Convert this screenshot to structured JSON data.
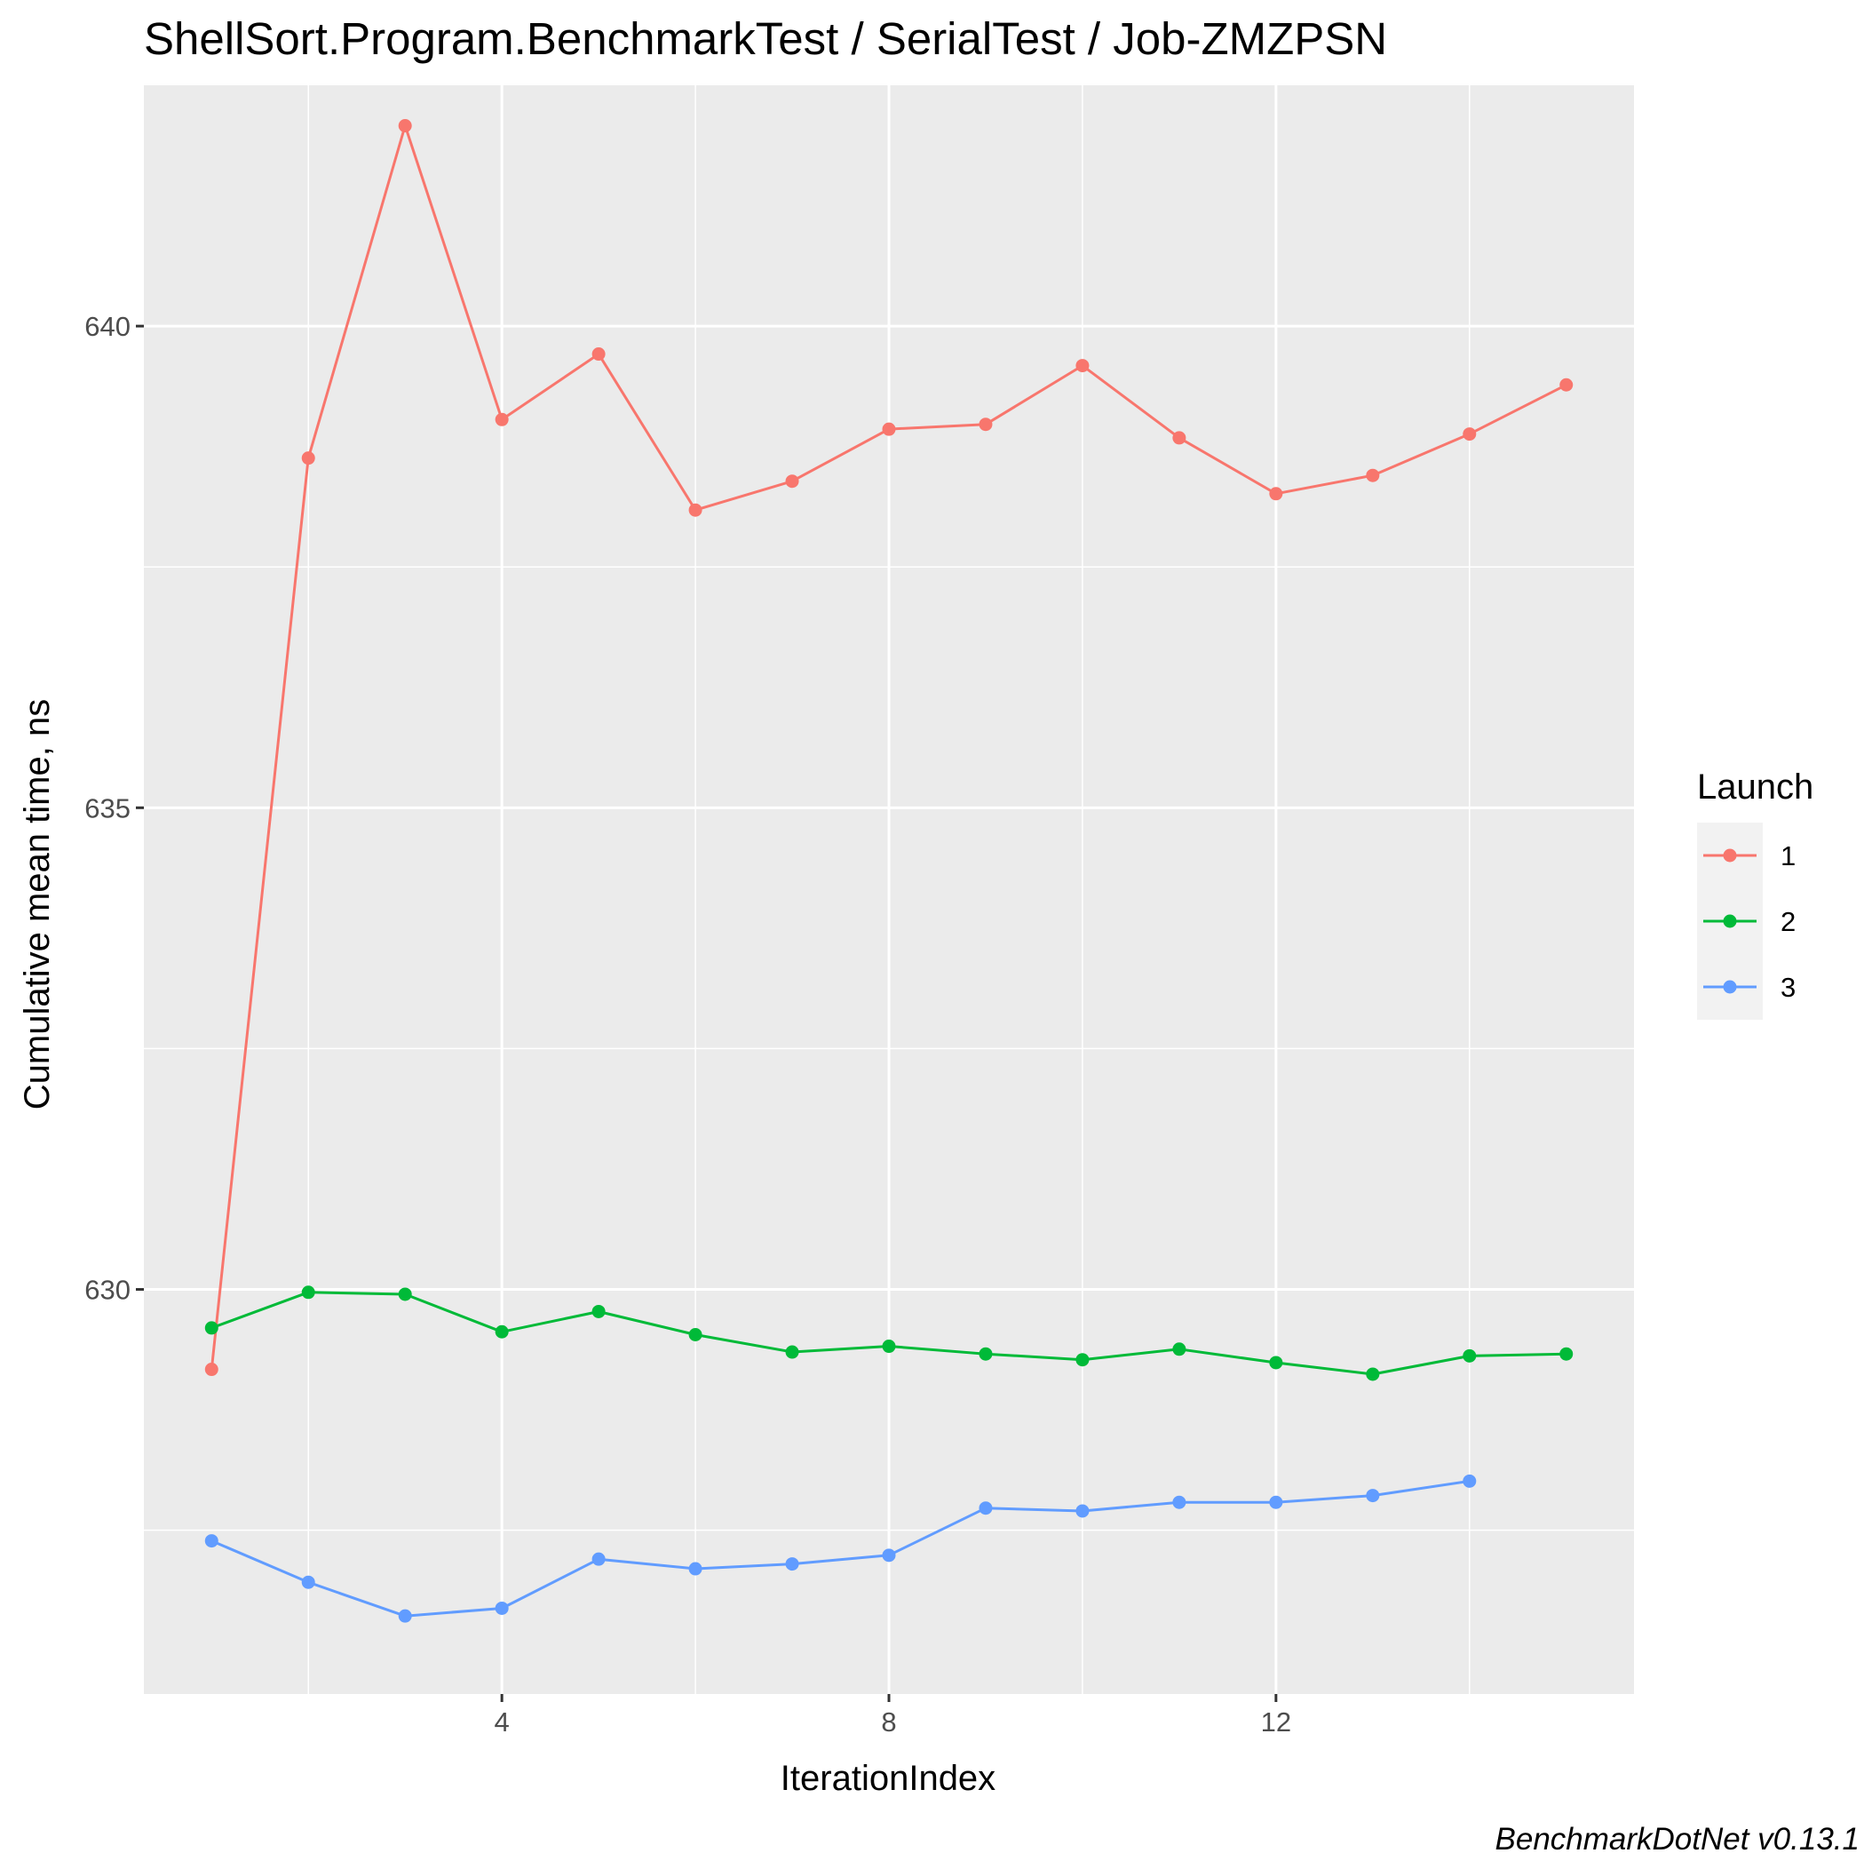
{
  "chart_data": {
    "type": "line",
    "title": "ShellSort.Program.BenchmarkTest / SerialTest / Job-ZMZPSN",
    "xlabel": "IterationIndex",
    "ylabel": "Cumulative mean time, ns",
    "xlim": [
      0.3,
      15.7
    ],
    "ylim": [
      625.8,
      642.5
    ],
    "x_ticks": [
      4,
      8,
      12
    ],
    "x_tick_labels": [
      "4",
      "8",
      "12"
    ],
    "y_ticks": [
      630,
      635,
      640
    ],
    "y_tick_labels": [
      "630",
      "635",
      "640"
    ],
    "grid": true,
    "legend": {
      "title": "Launch",
      "position": "right"
    },
    "caption": "BenchmarkDotNet v0.13.1",
    "series": [
      {
        "name": "1",
        "color": "#F8766D",
        "x": [
          1,
          2,
          3,
          4,
          5,
          6,
          7,
          8,
          9,
          10,
          11,
          12,
          13,
          14,
          15
        ],
        "y": [
          629.17,
          638.63,
          642.08,
          639.03,
          639.71,
          638.09,
          638.39,
          638.93,
          638.98,
          639.59,
          638.84,
          638.26,
          638.45,
          638.88,
          639.39
        ]
      },
      {
        "name": "2",
        "color": "#00BA38",
        "x": [
          1,
          2,
          3,
          4,
          5,
          6,
          7,
          8,
          9,
          10,
          11,
          12,
          13,
          14,
          15
        ],
        "y": [
          629.6,
          629.97,
          629.95,
          629.56,
          629.77,
          629.53,
          629.35,
          629.41,
          629.33,
          629.27,
          629.38,
          629.24,
          629.12,
          629.31,
          629.33
        ]
      },
      {
        "name": "3",
        "color": "#619CFF",
        "x": [
          1,
          2,
          3,
          4,
          5,
          6,
          7,
          8,
          9,
          10,
          11,
          12,
          13,
          14
        ],
        "y": [
          627.39,
          626.96,
          626.61,
          626.69,
          627.2,
          627.1,
          627.15,
          627.24,
          627.73,
          627.7,
          627.79,
          627.79,
          627.86,
          628.01
        ]
      }
    ]
  }
}
